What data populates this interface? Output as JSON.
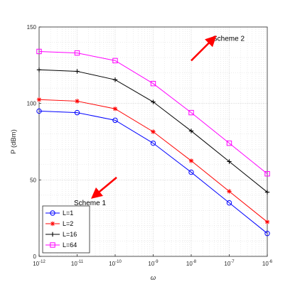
{
  "chart_data": {
    "type": "line",
    "title": "",
    "xlabel": "ω",
    "ylabel": "P (dBm)",
    "xscale": "log",
    "x": [
      1e-12,
      1e-11,
      1e-10,
      1e-09,
      1e-08,
      1e-07,
      1e-06
    ],
    "xlim": [
      1e-12,
      1e-06
    ],
    "ylim": [
      0,
      150
    ],
    "x_tick_labels": [
      {
        "base": "10",
        "exp": "-12"
      },
      {
        "base": "10",
        "exp": "-11"
      },
      {
        "base": "10",
        "exp": "-10"
      },
      {
        "base": "10",
        "exp": "-9"
      },
      {
        "base": "10",
        "exp": "-8"
      },
      {
        "base": "10",
        "exp": "-7"
      },
      {
        "base": "10",
        "exp": "-6"
      }
    ],
    "y_ticks": [
      0,
      50,
      100,
      150
    ],
    "grid": true,
    "legend_position": "bottom-left",
    "series": [
      {
        "name": "L=1",
        "color": "#0000ff",
        "marker": "circle",
        "values": [
          95,
          94,
          89,
          74,
          55,
          35,
          15
        ]
      },
      {
        "name": "L=2",
        "color": "#ff0000",
        "marker": "star",
        "values": [
          102.5,
          101.5,
          96.5,
          81.5,
          62.5,
          42.5,
          22.5
        ]
      },
      {
        "name": "L=16",
        "color": "#000000",
        "marker": "plus",
        "values": [
          122,
          121,
          115.5,
          101,
          82,
          62,
          42
        ]
      },
      {
        "name": "L=64",
        "color": "#ff00ff",
        "marker": "square",
        "values": [
          134,
          133,
          128,
          113,
          94,
          74,
          54
        ]
      }
    ],
    "annotations": [
      {
        "text": "Scheme 2",
        "x": 1e-08,
        "y": 128,
        "arrow": "up-right",
        "arrow_color": "#ff0000"
      },
      {
        "text": "Scheme 1",
        "x": 3e-11,
        "y": 40,
        "arrow": "down-left",
        "arrow_color": "#ff0000"
      }
    ]
  }
}
